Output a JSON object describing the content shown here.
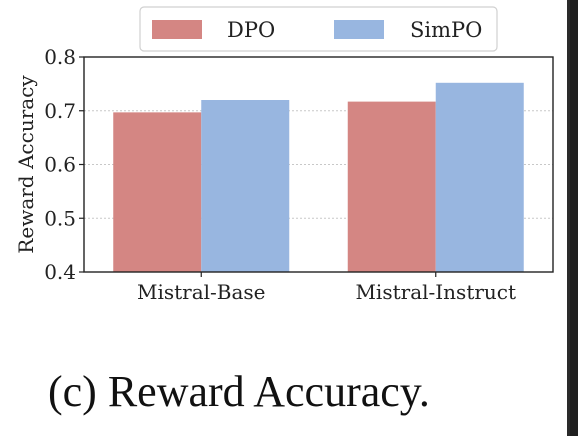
{
  "chart_data": {
    "type": "bar",
    "categories": [
      "Mistral-Base",
      "Mistral-Instruct"
    ],
    "series": [
      {
        "name": "DPO",
        "values": [
          0.697,
          0.717
        ],
        "color": "#d48683"
      },
      {
        "name": "SimPO",
        "values": [
          0.72,
          0.752
        ],
        "color": "#98b6e0"
      }
    ],
    "xlabel": "",
    "ylabel": "Reward Accuracy",
    "ylim": [
      0.4,
      0.8
    ],
    "yticks": [
      "0.4",
      "0.5",
      "0.6",
      "0.7",
      "0.8"
    ],
    "grid": true,
    "legend_position": "top-center"
  },
  "caption": "(c) Reward Accuracy."
}
